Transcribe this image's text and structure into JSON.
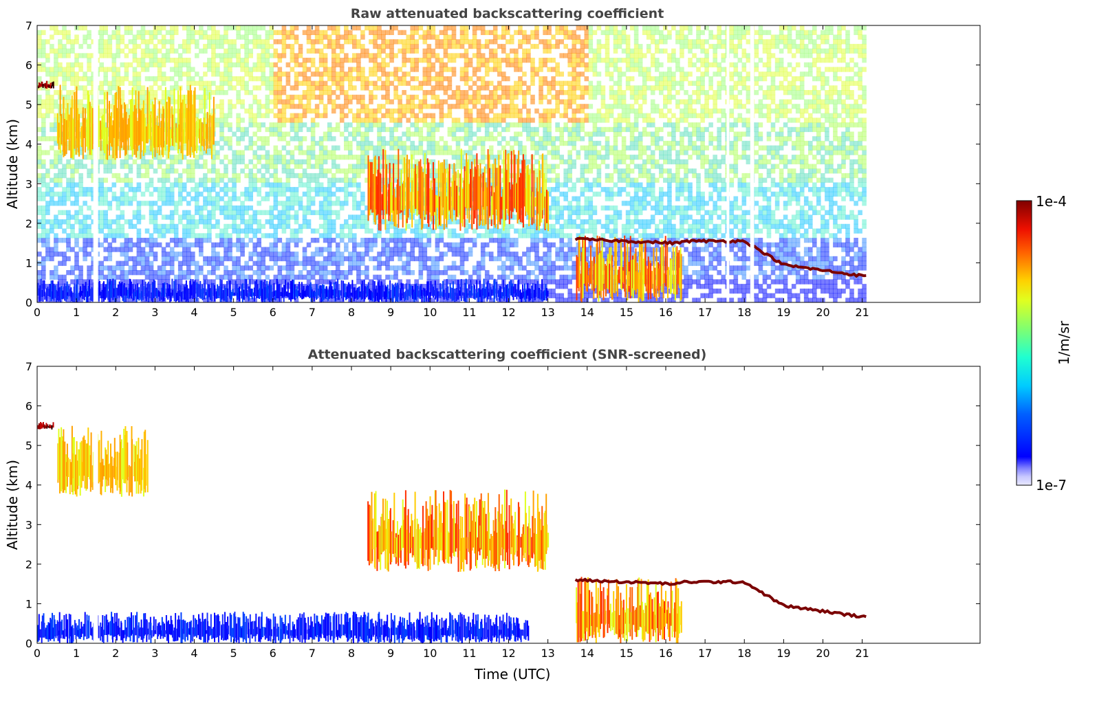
{
  "chart_data": [
    {
      "type": "heatmap",
      "title": "Raw attenuated backscattering coefficient",
      "ylabel": "Altitude (km)",
      "xlabel": "",
      "xlim": [
        0,
        24
      ],
      "ylim": [
        0,
        7
      ],
      "xticks": [
        "0",
        "1",
        "2",
        "3",
        "4",
        "5",
        "6",
        "7",
        "8",
        "9",
        "10",
        "11",
        "12",
        "13",
        "14",
        "15",
        "16",
        "17",
        "18",
        "19",
        "20",
        "21"
      ],
      "yticks": [
        "0",
        "1",
        "2",
        "3",
        "4",
        "5",
        "6",
        "7"
      ],
      "data_end_time": 21.1,
      "data_gaps": [
        {
          "start": 1.43,
          "end": 1.55
        },
        {
          "start": 17.55,
          "end": 17.62
        },
        {
          "start": 18.15,
          "end": 18.25
        }
      ],
      "layers": [
        {
          "feature": "aerosol/boundary layer",
          "x": [
            0,
            13.0
          ],
          "y": [
            0,
            0.6
          ],
          "intensity": "low"
        },
        {
          "feature": "high cloud",
          "x": [
            0,
            0.4
          ],
          "y": [
            5.4,
            5.6
          ],
          "intensity": "very high"
        },
        {
          "feature": "elevated aerosol/cloud streaks",
          "x": [
            0.5,
            4.5
          ],
          "y": [
            3.6,
            5.5
          ],
          "intensity": "moderate"
        },
        {
          "feature": "cloud base",
          "x": [
            8.4,
            13.0
          ],
          "y": [
            1.8,
            3.9
          ],
          "intensity": "high"
        },
        {
          "feature": "dense boundary layer cloud",
          "x": [
            13.7,
            16.4
          ],
          "y": [
            0,
            1.7
          ],
          "intensity": "high"
        },
        {
          "feature": "cloud top line",
          "x": [
            13.7,
            21.1
          ],
          "y": [
            0.7,
            1.7
          ],
          "intensity": "very high"
        }
      ],
      "colormap": "jet"
    },
    {
      "type": "heatmap",
      "title": "Attenuated backscattering coefficient (SNR-screened)",
      "ylabel": "Altitude (km)",
      "xlabel": "Time (UTC)",
      "xlim": [
        0,
        24
      ],
      "ylim": [
        0,
        7
      ],
      "xticks": [
        "0",
        "1",
        "2",
        "3",
        "4",
        "5",
        "6",
        "7",
        "8",
        "9",
        "10",
        "11",
        "12",
        "13",
        "14",
        "15",
        "16",
        "17",
        "18",
        "19",
        "20",
        "21"
      ],
      "yticks": [
        "0",
        "1",
        "2",
        "3",
        "4",
        "5",
        "6",
        "7"
      ],
      "data_end_time": 21.1,
      "data_gaps": [
        {
          "start": 1.43,
          "end": 1.55
        }
      ],
      "layers": [
        {
          "feature": "aerosol/boundary layer",
          "x": [
            0,
            12.5
          ],
          "y": [
            0,
            0.8
          ],
          "intensity": "low"
        },
        {
          "feature": "high cloud",
          "x": [
            0,
            0.4
          ],
          "y": [
            5.4,
            5.6
          ],
          "intensity": "very high"
        },
        {
          "feature": "elevated aerosol streaks",
          "x": [
            0.5,
            2.8
          ],
          "y": [
            3.7,
            5.5
          ],
          "intensity": "moderate"
        },
        {
          "feature": "cloud base",
          "x": [
            8.4,
            13.0
          ],
          "y": [
            1.8,
            3.9
          ],
          "intensity": "high"
        },
        {
          "feature": "dense boundary layer cloud",
          "x": [
            13.7,
            16.4
          ],
          "y": [
            0,
            1.7
          ],
          "intensity": "high"
        },
        {
          "feature": "cloud top line",
          "x": [
            13.7,
            21.1
          ],
          "y": [
            0.7,
            1.7
          ],
          "intensity": "very high"
        }
      ],
      "colormap": "jet"
    }
  ],
  "colorbar": {
    "label": "1/m/sr",
    "max_label": "1e-4",
    "min_label": "1e-7",
    "colormap": "jet",
    "scale": "log",
    "range": [
      1e-07,
      0.0001
    ]
  },
  "colors": {
    "title": "#444444",
    "axis": "#000000",
    "background": "#ffffff"
  }
}
